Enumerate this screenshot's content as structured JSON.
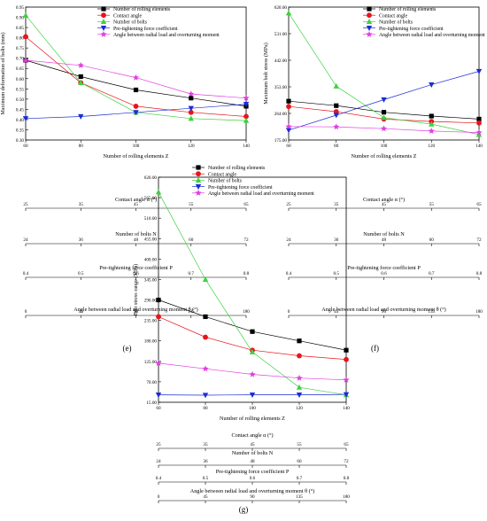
{
  "legend_labels": [
    "Number of rolling elements",
    "Contact angle",
    "Number of bolts",
    "Pre-tightening force coefficient",
    "Angle between radial load and overturning moment"
  ],
  "series_colors": [
    "#000000",
    "#e8141c",
    "#3fd13f",
    "#1a2cd6",
    "#e040e0"
  ],
  "series_markers": [
    "square",
    "circle",
    "triangle-up",
    "triangle-down",
    "star"
  ],
  "shared_axes": [
    {
      "label": "Number of rolling elements Z",
      "ticks": [
        "60",
        "80",
        "100",
        "120",
        "140"
      ]
    },
    {
      "label": "Contact angle α (°)",
      "ticks": [
        "25",
        "35",
        "45",
        "55",
        "65"
      ]
    },
    {
      "label": "Number of bolts N",
      "ticks": [
        "24",
        "36",
        "48",
        "60",
        "72"
      ]
    },
    {
      "label": "Pre-tightening force coefficient P",
      "ticks": [
        "0.4",
        "0.5",
        "0.6",
        "0.7",
        "0.8"
      ]
    },
    {
      "label": "Angle between radial load and overturning moment θ (°)",
      "ticks": [
        "0",
        "45",
        "90",
        "135",
        "180"
      ]
    }
  ],
  "chart_data": [
    {
      "type": "line",
      "panel_label": "(e)",
      "ylabel": "Maximum deformation of bolts (mm)",
      "ylim": [
        0.3,
        0.95
      ],
      "yticks": [
        "0.30",
        "0.35",
        "0.40",
        "0.45",
        "0.50",
        "0.55",
        "0.60",
        "0.65",
        "0.70",
        "0.75",
        "0.80",
        "0.85",
        "0.90",
        "0.95"
      ],
      "x_positions": [
        0,
        1,
        2,
        3,
        4
      ],
      "series": [
        {
          "name": "Number of rolling elements",
          "values": [
            0.69,
            0.61,
            0.545,
            0.505,
            0.465
          ]
        },
        {
          "name": "Contact angle",
          "values": [
            0.805,
            0.58,
            0.465,
            0.435,
            0.415
          ]
        },
        {
          "name": "Number of bolts",
          "values": [
            0.91,
            0.58,
            0.435,
            0.405,
            0.395
          ]
        },
        {
          "name": "Pre-tightening force coefficient",
          "values": [
            0.405,
            0.415,
            0.435,
            0.455,
            0.475
          ]
        },
        {
          "name": "Angle between radial load and overturning moment",
          "values": [
            0.69,
            0.665,
            0.605,
            0.525,
            0.505
          ]
        }
      ]
    },
    {
      "type": "line",
      "panel_label": "(f)",
      "ylabel": "Maximum bolt stress (MPa)",
      "ylim": [
        175,
        620
      ],
      "yticks": [
        "175.00",
        "264.00",
        "353.00",
        "442.00",
        "531.00",
        "620.00"
      ],
      "x_positions": [
        0,
        1,
        2,
        3,
        4
      ],
      "series": [
        {
          "name": "Number of rolling elements",
          "values": [
            305,
            290,
            268,
            255,
            245
          ]
        },
        {
          "name": "Contact angle",
          "values": [
            287,
            270,
            245,
            237,
            232
          ]
        },
        {
          "name": "Number of bolts",
          "values": [
            600,
            355,
            250,
            228,
            193
          ]
        },
        {
          "name": "Pre-tightening force coefficient",
          "values": [
            208,
            258,
            310,
            360,
            405
          ]
        },
        {
          "name": "Angle between radial load and overturning moment",
          "values": [
            220,
            219,
            213,
            205,
            200
          ]
        }
      ]
    },
    {
      "type": "line",
      "panel_label": "(g)",
      "ylabel": "Bolt stress range (MPa)",
      "ylim": [
        15,
        620
      ],
      "yticks": [
        "15.00",
        "70.00",
        "125.00",
        "180.00",
        "235.00",
        "290.00",
        "345.00",
        "400.00",
        "455.00",
        "510.00",
        "565.00",
        "620.00"
      ],
      "x_positions": [
        0,
        1,
        2,
        3,
        4
      ],
      "series": [
        {
          "name": "Number of rolling elements",
          "values": [
            290,
            245,
            205,
            180,
            155
          ]
        },
        {
          "name": "Contact angle",
          "values": [
            245,
            190,
            155,
            140,
            130
          ]
        },
        {
          "name": "Number of bolts",
          "values": [
            580,
            345,
            150,
            55,
            35
          ]
        },
        {
          "name": "Pre-tightening force coefficient",
          "values": [
            35,
            34,
            35,
            35,
            36
          ]
        },
        {
          "name": "Angle between radial load and overturning moment",
          "values": [
            120,
            105,
            90,
            80,
            75
          ]
        }
      ]
    }
  ]
}
